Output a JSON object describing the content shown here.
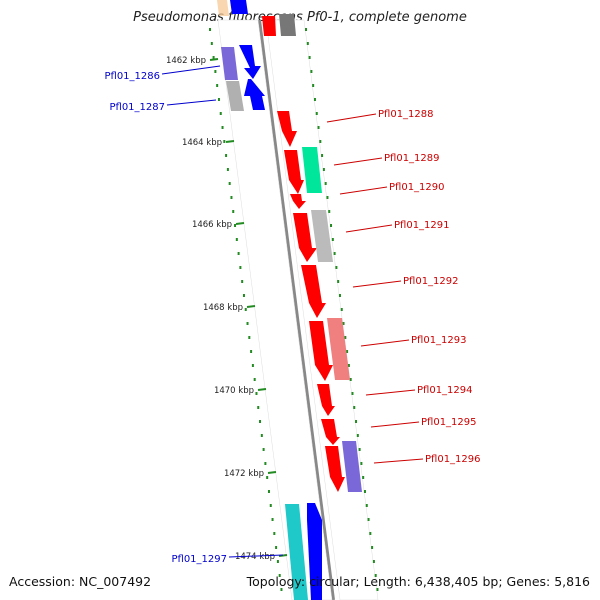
{
  "title": "Pseudomonas fluorescens Pf0-1, complete genome",
  "accession": "Accession: NC_007492",
  "summary": "Topology: circular; Length: 6,438,405 bp; Genes: 5,816",
  "colors": {
    "forward_gene": "#ff0000",
    "reverse_gene": "#0000ff",
    "forward_label": "#cc0000",
    "reverse_label": "#0000cc",
    "ruler_tick": "#228b22",
    "backbone": "#888888"
  },
  "ruler": {
    "ticks": [
      "1462 kbp",
      "1464 kbp",
      "1466 kbp",
      "1468 kbp",
      "1470 kbp",
      "1472 kbp",
      "1474 kbp"
    ]
  },
  "genes": {
    "forward": [
      {
        "label": "Pfl01_1288"
      },
      {
        "label": "Pfl01_1289"
      },
      {
        "label": "Pfl01_1290"
      },
      {
        "label": "Pfl01_1291"
      },
      {
        "label": "Pfl01_1292"
      },
      {
        "label": "Pfl01_1293"
      },
      {
        "label": "Pfl01_1294"
      },
      {
        "label": "Pfl01_1295"
      },
      {
        "label": "Pfl01_1296"
      }
    ],
    "reverse": [
      {
        "label": "Pfl01_1286"
      },
      {
        "label": "Pfl01_1287"
      },
      {
        "label": "Pfl01_1297"
      }
    ]
  }
}
